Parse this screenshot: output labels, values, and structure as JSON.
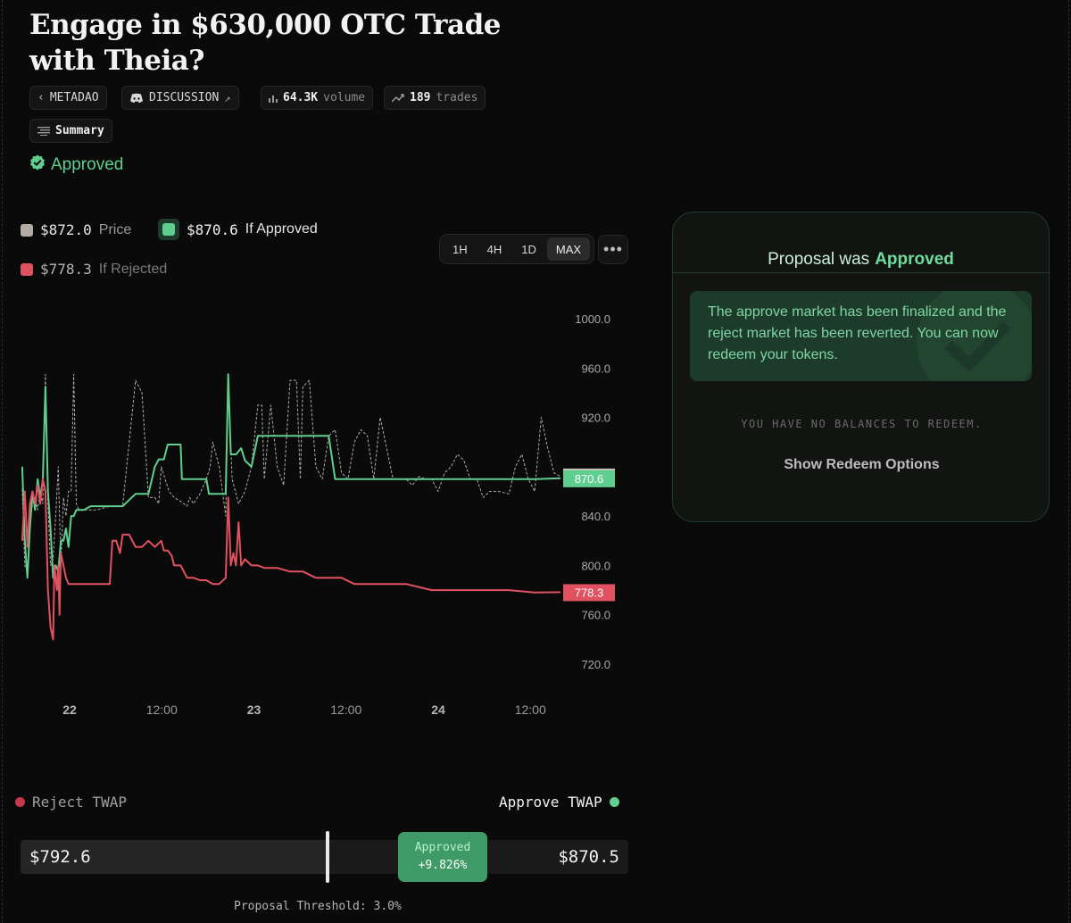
{
  "title": "Engage in $630,000 OTC Trade with Theia?",
  "chips": {
    "back": "METADAO",
    "discussion": "DISCUSSION",
    "volume_value": "64.3K",
    "volume_label": "volume",
    "trades_value": "189",
    "trades_label": "trades",
    "summary": "Summary"
  },
  "status": "Approved",
  "legend": {
    "price_value": "$872.0",
    "price_label": "Price",
    "approved_value": "$870.6",
    "approved_label": "If Approved",
    "rejected_value": "$778.3",
    "rejected_label": "If Rejected"
  },
  "ranges": [
    "1H",
    "4H",
    "1D",
    "MAX"
  ],
  "active_range": "MAX",
  "more_label": "•••",
  "colors": {
    "price": "#b3aca4",
    "approved": "#5fce8e",
    "rejected": "#e0525f",
    "accent_green": "#3e9a66"
  },
  "chart_data": {
    "type": "line",
    "ylim": [
      700,
      1020
    ],
    "y_ticks": [
      1000.0,
      960.0,
      920.0,
      880.0,
      840.0,
      800.0,
      760.0,
      720.0
    ],
    "y_tick_labels": [
      "1000.0",
      "960.0",
      "920.0",
      "",
      "840.0",
      "800.0",
      "760.0",
      "720.0"
    ],
    "x_tick_labels": [
      {
        "label": "22",
        "bold": true,
        "t": 0.5
      },
      {
        "label": "12:00",
        "bold": false,
        "t": 1.0
      },
      {
        "label": "23",
        "bold": true,
        "t": 1.5
      },
      {
        "label": "12:00",
        "bold": false,
        "t": 2.0
      },
      {
        "label": "24",
        "bold": true,
        "t": 2.5
      },
      {
        "label": "12:00",
        "bold": false,
        "t": 3.0
      }
    ],
    "series": [
      {
        "name": "Price",
        "last": "872.0",
        "points": [
          [
            0.02,
            862
          ],
          [
            0.04,
            800
          ],
          [
            0.06,
            795
          ],
          [
            0.08,
            830
          ],
          [
            0.1,
            850
          ],
          [
            0.12,
            855
          ],
          [
            0.14,
            845
          ],
          [
            0.16,
            860
          ],
          [
            0.18,
            850
          ],
          [
            0.2,
            955
          ],
          [
            0.22,
            850
          ],
          [
            0.24,
            800
          ],
          [
            0.26,
            805
          ],
          [
            0.28,
            840
          ],
          [
            0.3,
            880
          ],
          [
            0.32,
            800
          ],
          [
            0.34,
            855
          ],
          [
            0.36,
            840
          ],
          [
            0.38,
            860
          ],
          [
            0.4,
            860
          ],
          [
            0.42,
            955
          ],
          [
            0.44,
            850
          ],
          [
            0.46,
            845
          ],
          [
            0.48,
            845
          ],
          [
            0.5,
            845
          ],
          [
            0.6,
            845
          ],
          [
            0.7,
            848
          ],
          [
            0.8,
            848
          ],
          [
            0.9,
            950
          ],
          [
            0.95,
            940
          ],
          [
            1.0,
            855
          ],
          [
            1.05,
            855
          ],
          [
            1.08,
            850
          ],
          [
            1.1,
            880
          ],
          [
            1.13,
            870
          ],
          [
            1.16,
            860
          ],
          [
            1.2,
            855
          ],
          [
            1.25,
            852
          ],
          [
            1.3,
            848
          ],
          [
            1.32,
            855
          ],
          [
            1.35,
            850
          ],
          [
            1.4,
            858
          ],
          [
            1.45,
            870
          ],
          [
            1.48,
            880
          ],
          [
            1.5,
            900
          ],
          [
            1.55,
            880
          ],
          [
            1.6,
            840
          ],
          [
            1.62,
            950
          ],
          [
            1.65,
            870
          ],
          [
            1.7,
            850
          ],
          [
            1.75,
            860
          ],
          [
            1.8,
            880
          ],
          [
            1.85,
            930
          ],
          [
            1.88,
            930
          ],
          [
            1.9,
            870
          ],
          [
            1.95,
            930
          ],
          [
            2.0,
            880
          ],
          [
            2.05,
            865
          ],
          [
            2.1,
            950
          ],
          [
            2.15,
            950
          ],
          [
            2.18,
            870
          ],
          [
            2.2,
            945
          ],
          [
            2.25,
            950
          ],
          [
            2.3,
            880
          ],
          [
            2.35,
            870
          ],
          [
            2.4,
            905
          ],
          [
            2.45,
            910
          ],
          [
            2.5,
            875
          ],
          [
            2.55,
            870
          ],
          [
            2.6,
            900
          ],
          [
            2.65,
            910
          ],
          [
            2.7,
            905
          ],
          [
            2.75,
            870
          ],
          [
            2.8,
            920
          ],
          [
            2.85,
            895
          ],
          [
            2.9,
            870
          ],
          [
            2.95,
            870
          ],
          [
            3.0,
            870
          ],
          [
            3.05,
            865
          ],
          [
            3.1,
            872
          ],
          [
            3.15,
            870
          ],
          [
            3.2,
            870
          ],
          [
            3.25,
            860
          ],
          [
            3.3,
            875
          ],
          [
            3.35,
            880
          ],
          [
            3.4,
            890
          ],
          [
            3.45,
            885
          ],
          [
            3.5,
            870
          ],
          [
            3.55,
            870
          ],
          [
            3.6,
            855
          ],
          [
            3.65,
            860
          ],
          [
            3.7,
            860
          ],
          [
            3.72,
            860
          ],
          [
            3.8,
            858
          ],
          [
            3.85,
            880
          ],
          [
            3.9,
            890
          ],
          [
            3.95,
            870
          ],
          [
            4.0,
            860
          ],
          [
            4.05,
            920
          ],
          [
            4.1,
            895
          ],
          [
            4.15,
            875
          ],
          [
            4.2,
            872
          ]
        ]
      },
      {
        "name": "If Approved",
        "last": "870.6",
        "points": [
          [
            0.02,
            880
          ],
          [
            0.04,
            820
          ],
          [
            0.06,
            790
          ],
          [
            0.08,
            830
          ],
          [
            0.1,
            860
          ],
          [
            0.12,
            845
          ],
          [
            0.14,
            870
          ],
          [
            0.16,
            855
          ],
          [
            0.18,
            870
          ],
          [
            0.2,
            945
          ],
          [
            0.22,
            860
          ],
          [
            0.24,
            830
          ],
          [
            0.26,
            790
          ],
          [
            0.28,
            800
          ],
          [
            0.3,
            795
          ],
          [
            0.32,
            820
          ],
          [
            0.34,
            820
          ],
          [
            0.36,
            830
          ],
          [
            0.38,
            815
          ],
          [
            0.4,
            840
          ],
          [
            0.42,
            840
          ],
          [
            0.44,
            845
          ],
          [
            0.5,
            845
          ],
          [
            0.55,
            848
          ],
          [
            0.6,
            848
          ],
          [
            0.8,
            848
          ],
          [
            0.82,
            850
          ],
          [
            0.9,
            858
          ],
          [
            1.0,
            858
          ],
          [
            1.05,
            880
          ],
          [
            1.08,
            886
          ],
          [
            1.12,
            886
          ],
          [
            1.15,
            898
          ],
          [
            1.2,
            898
          ],
          [
            1.25,
            898
          ],
          [
            1.26,
            870
          ],
          [
            1.35,
            870
          ],
          [
            1.45,
            870
          ],
          [
            1.47,
            858
          ],
          [
            1.5,
            858
          ],
          [
            1.6,
            858
          ],
          [
            1.62,
            955
          ],
          [
            1.64,
            890
          ],
          [
            1.68,
            890
          ],
          [
            1.72,
            895
          ],
          [
            1.75,
            885
          ],
          [
            1.8,
            880
          ],
          [
            1.85,
            905
          ],
          [
            1.9,
            905
          ],
          [
            2.0,
            905
          ],
          [
            2.2,
            905
          ],
          [
            2.4,
            905
          ],
          [
            2.45,
            870
          ],
          [
            2.5,
            870
          ],
          [
            2.7,
            870
          ],
          [
            3.0,
            870
          ],
          [
            3.2,
            870
          ],
          [
            3.5,
            870
          ],
          [
            3.8,
            870
          ],
          [
            4.0,
            870
          ],
          [
            4.2,
            870.6
          ]
        ]
      },
      {
        "name": "If Rejected",
        "last": "778.3",
        "points": [
          [
            0.02,
            820
          ],
          [
            0.04,
            860
          ],
          [
            0.06,
            815
          ],
          [
            0.08,
            850
          ],
          [
            0.1,
            860
          ],
          [
            0.12,
            850
          ],
          [
            0.14,
            865
          ],
          [
            0.16,
            850
          ],
          [
            0.18,
            870
          ],
          [
            0.2,
            860
          ],
          [
            0.22,
            780
          ],
          [
            0.24,
            750
          ],
          [
            0.26,
            740
          ],
          [
            0.27,
            800
          ],
          [
            0.28,
            790
          ],
          [
            0.29,
            780
          ],
          [
            0.3,
            800
          ],
          [
            0.31,
            760
          ],
          [
            0.32,
            810
          ],
          [
            0.34,
            800
          ],
          [
            0.36,
            790
          ],
          [
            0.38,
            785
          ],
          [
            0.4,
            785
          ],
          [
            0.5,
            785
          ],
          [
            0.55,
            785
          ],
          [
            0.6,
            785
          ],
          [
            0.7,
            785
          ],
          [
            0.72,
            820
          ],
          [
            0.75,
            820
          ],
          [
            0.78,
            810
          ],
          [
            0.8,
            825
          ],
          [
            0.85,
            825
          ],
          [
            0.9,
            815
          ],
          [
            0.95,
            815
          ],
          [
            1.0,
            820
          ],
          [
            1.05,
            815
          ],
          [
            1.1,
            820
          ],
          [
            1.12,
            812
          ],
          [
            1.15,
            812
          ],
          [
            1.18,
            808
          ],
          [
            1.2,
            800
          ],
          [
            1.25,
            800
          ],
          [
            1.3,
            790
          ],
          [
            1.35,
            790
          ],
          [
            1.4,
            788
          ],
          [
            1.45,
            788
          ],
          [
            1.5,
            785
          ],
          [
            1.55,
            785
          ],
          [
            1.6,
            790
          ],
          [
            1.62,
            855
          ],
          [
            1.64,
            800
          ],
          [
            1.66,
            810
          ],
          [
            1.68,
            800
          ],
          [
            1.7,
            835
          ],
          [
            1.72,
            800
          ],
          [
            1.75,
            805
          ],
          [
            1.8,
            800
          ],
          [
            1.85,
            800
          ],
          [
            1.9,
            798
          ],
          [
            2.0,
            798
          ],
          [
            2.1,
            795
          ],
          [
            2.2,
            795
          ],
          [
            2.3,
            790
          ],
          [
            2.4,
            790
          ],
          [
            2.5,
            790
          ],
          [
            2.6,
            785
          ],
          [
            2.8,
            785
          ],
          [
            3.0,
            785
          ],
          [
            3.2,
            780
          ],
          [
            3.5,
            780
          ],
          [
            3.8,
            780
          ],
          [
            4.0,
            778
          ],
          [
            4.2,
            778.3
          ]
        ]
      }
    ]
  },
  "twap": {
    "reject_label": "Reject TWAP",
    "approve_label": "Approve TWAP",
    "reject_value": "$792.6",
    "approve_value": "$870.5",
    "pill_status": "Approved",
    "pill_change": "+9.826%",
    "threshold": "Proposal Threshold: 3.0%"
  },
  "panel": {
    "heading_prefix": "Proposal was",
    "heading_status": "Approved",
    "notice": "The approve market has been finalized and the reject market has been reverted. You can now redeem your tokens.",
    "no_balance": "YOU HAVE NO BALANCES TO REDEEM.",
    "show_redeem": "Show Redeem Options"
  }
}
